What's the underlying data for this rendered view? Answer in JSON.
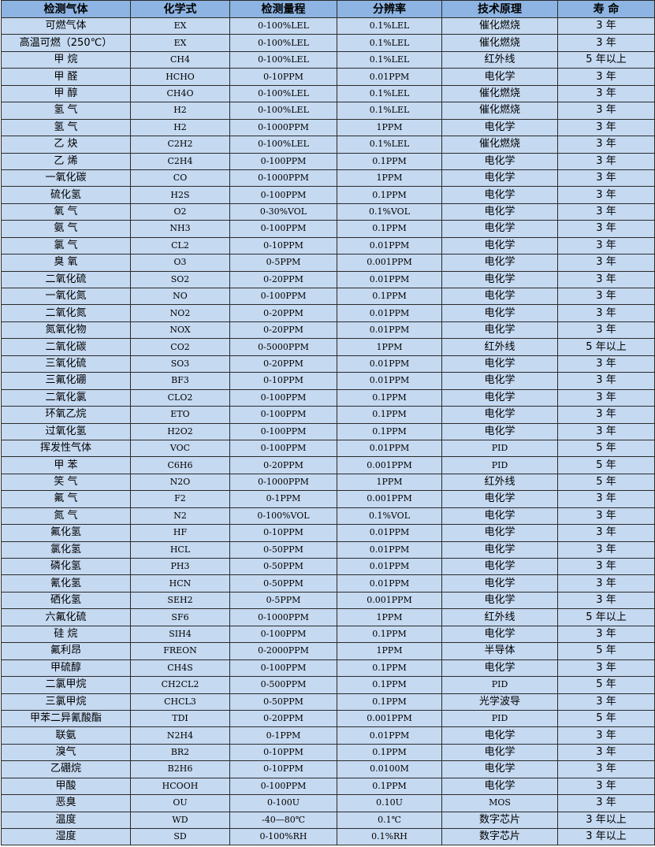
{
  "table": {
    "headers": [
      "检测气体",
      "化学式",
      "检测量程",
      "分辨率",
      "技术原理",
      "寿 命"
    ],
    "rows": [
      [
        "可燃气体",
        "EX",
        "0-100%LEL",
        "0.1%LEL",
        "催化燃烧",
        "3 年"
      ],
      [
        "高温可燃（250℃）",
        "EX",
        "0-100%LEL",
        "0.1%LEL",
        "催化燃烧",
        "3 年"
      ],
      [
        "甲 烷",
        "CH4",
        "0-100%LEL",
        "0.1%LEL",
        "红外线",
        "5 年以上"
      ],
      [
        "甲 醛",
        "HCHO",
        "0-10PPM",
        "0.01PPM",
        "电化学",
        "3 年"
      ],
      [
        "甲 醇",
        "CH4O",
        "0-100%LEL",
        "0.1%LEL",
        "催化燃烧",
        "3 年"
      ],
      [
        "氢 气",
        "H2",
        "0-100%LEL",
        "0.1%LEL",
        "催化燃烧",
        "3 年"
      ],
      [
        "氢 气",
        "H2",
        "0-1000PPM",
        "1PPM",
        "电化学",
        "3 年"
      ],
      [
        "乙 炔",
        "C2H2",
        "0-100%LEL",
        "0.1%LEL",
        "催化燃烧",
        "3 年"
      ],
      [
        "乙 烯",
        "C2H4",
        "0-100PPM",
        "0.1PPM",
        "电化学",
        "3 年"
      ],
      [
        "一氧化碳",
        "CO",
        "0-1000PPM",
        "1PPM",
        "电化学",
        "3 年"
      ],
      [
        "硫化氢",
        "H2S",
        "0-100PPM",
        "0.1PPM",
        "电化学",
        "3 年"
      ],
      [
        "氧 气",
        "O2",
        "0-30%VOL",
        "0.1%VOL",
        "电化学",
        "3 年"
      ],
      [
        "氨 气",
        "NH3",
        "0-100PPM",
        "0.1PPM",
        "电化学",
        "3 年"
      ],
      [
        "氯 气",
        "CL2",
        "0-10PPM",
        "0.01PPM",
        "电化学",
        "3 年"
      ],
      [
        "臭 氧",
        "O3",
        "0-5PPM",
        "0.001PPM",
        "电化学",
        "3 年"
      ],
      [
        "二氧化硫",
        "SO2",
        "0-20PPM",
        "0.01PPM",
        "电化学",
        "3 年"
      ],
      [
        "一氧化氮",
        "NO",
        "0-100PPM",
        "0.1PPM",
        "电化学",
        "3 年"
      ],
      [
        "二氧化氮",
        "NO2",
        "0-20PPM",
        "0.01PPM",
        "电化学",
        "3 年"
      ],
      [
        "氮氧化物",
        "NOX",
        "0-20PPM",
        "0.01PPM",
        "电化学",
        "3 年"
      ],
      [
        "二氧化碳",
        "CO2",
        "0-5000PPM",
        "1PPM",
        "红外线",
        "5 年以上"
      ],
      [
        "三氧化硫",
        "SO3",
        "0-20PPM",
        "0.01PPM",
        "电化学",
        "3 年"
      ],
      [
        "三氟化硼",
        "BF3",
        "0-10PPM",
        "0.01PPM",
        "电化学",
        "3 年"
      ],
      [
        "二氧化氯",
        "CLO2",
        "0-100PPM",
        "0.1PPM",
        "电化学",
        "3 年"
      ],
      [
        "环氧乙烷",
        "ETO",
        "0-100PPM",
        "0.1PPM",
        "电化学",
        "3 年"
      ],
      [
        "过氧化氢",
        "H2O2",
        "0-100PPM",
        "0.1PPM",
        "电化学",
        "3 年"
      ],
      [
        "挥发性气体",
        "VOC",
        "0-100PPM",
        "0.01PPM",
        "PID",
        "5 年"
      ],
      [
        "甲 苯",
        "C6H6",
        "0-20PPM",
        "0.001PPM",
        "PID",
        "5 年"
      ],
      [
        "笑 气",
        "N2O",
        "0-1000PPM",
        "1PPM",
        "红外线",
        "5 年"
      ],
      [
        "氟 气",
        "F2",
        "0-1PPM",
        "0.001PPM",
        "电化学",
        "3 年"
      ],
      [
        "氮 气",
        "N2",
        "0-100%VOL",
        "0.1%VOL",
        "电化学",
        "3 年"
      ],
      [
        "氟化氢",
        "HF",
        "0-10PPM",
        "0.01PPM",
        "电化学",
        "3 年"
      ],
      [
        "氯化氢",
        "HCL",
        "0-50PPM",
        "0.01PPM",
        "电化学",
        "3 年"
      ],
      [
        "磷化氢",
        "PH3",
        "0-50PPM",
        "0.01PPM",
        "电化学",
        "3 年"
      ],
      [
        "氰化氢",
        "HCN",
        "0-50PPM",
        "0.01PPM",
        "电化学",
        "3 年"
      ],
      [
        "硒化氢",
        "SEH2",
        "0-5PPM",
        "0.001PPM",
        "电化学",
        "3 年"
      ],
      [
        "六氟化硫",
        "SF6",
        "0-1000PPM",
        "1PPM",
        "红外线",
        "5 年以上"
      ],
      [
        "硅 烷",
        "SIH4",
        "0-100PPM",
        "0.1PPM",
        "电化学",
        "3 年"
      ],
      [
        "氟利昂",
        "FREON",
        "0-2000PPM",
        "1PPM",
        "半导体",
        "5 年"
      ],
      [
        "甲硫醇",
        "CH4S",
        "0-100PPM",
        "0.1PPM",
        "电化学",
        "3 年"
      ],
      [
        "二氯甲烷",
        "CH2CL2",
        "0-500PPM",
        "0.1PPM",
        "PID",
        "5 年"
      ],
      [
        "三氯甲烷",
        "CHCL3",
        "0-50PPM",
        "0.1PPM",
        "光学波导",
        "3 年"
      ],
      [
        "甲苯二异氰酸酯",
        "TDI",
        "0-20PPM",
        "0.001PPM",
        "PID",
        "5 年"
      ],
      [
        "联氨",
        "N2H4",
        "0-1PPM",
        "0.01PPM",
        "电化学",
        "3 年"
      ],
      [
        "溴气",
        "BR2",
        "0-10PPM",
        "0.1PPM",
        "电化学",
        "3 年"
      ],
      [
        "乙硼烷",
        "B2H6",
        "0-10PPM",
        "0.0100M",
        "电化学",
        "3 年"
      ],
      [
        "甲酸",
        "HCOOH",
        "0-100PPM",
        "0.1PPM",
        "电化学",
        "3 年"
      ],
      [
        "恶臭",
        "OU",
        "0-100U",
        "0.10U",
        "MOS",
        "3 年"
      ],
      [
        "温度",
        "WD",
        "-40—80℃",
        "0.1℃",
        "数字芯片",
        "3 年以上"
      ],
      [
        "湿度",
        "SD",
        "0-100%RH",
        "0.1%RH",
        "数字芯片",
        "3 年以上"
      ]
    ]
  },
  "colors": {
    "header_bg": "#8db4e2",
    "row_bg": "#c5d9f1",
    "border": "#2b2b2b"
  }
}
